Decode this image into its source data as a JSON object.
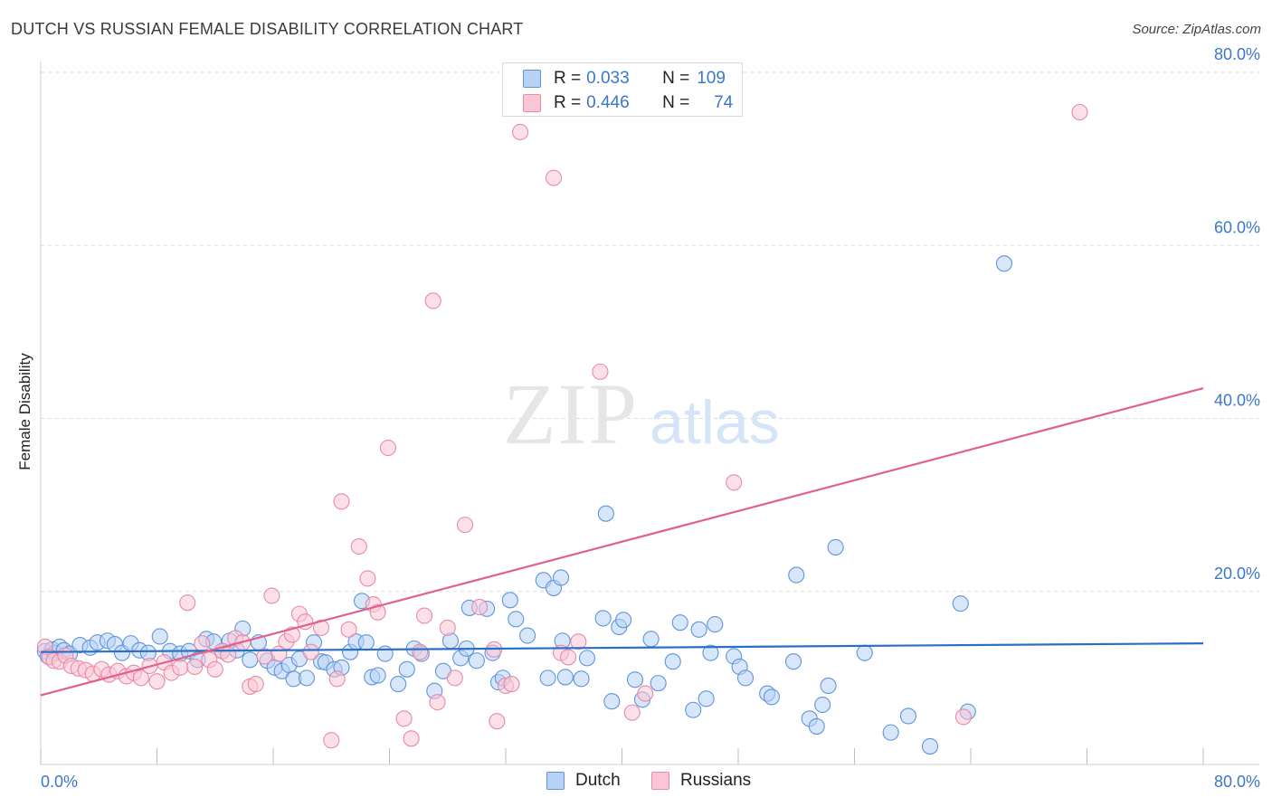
{
  "title": "DUTCH VS RUSSIAN FEMALE DISABILITY CORRELATION CHART",
  "source": "Source: ZipAtlas.com",
  "watermark": {
    "zip": "ZIP",
    "atlas": "atlas"
  },
  "colors": {
    "dutch_fill": "#b8d2f5",
    "dutch_stroke": "#5f95dc",
    "dutch_line": "#2a6fc6",
    "russian_fill": "#f9c6d6",
    "russian_stroke": "#e88aa8",
    "russian_line": "#e0628c",
    "tick_label": "#3a78c9",
    "grid": "#dcdcdc"
  },
  "legend": {
    "rows": [
      {
        "series": "dutch",
        "r_label": "R =",
        "r_value": "0.033",
        "n_label": "N =",
        "n_value": "109"
      },
      {
        "series": "russians",
        "r_label": "R =",
        "r_value": "0.446",
        "n_label": "N =",
        "n_value": "74"
      }
    ]
  },
  "bottom_legend": {
    "dutch": "Dutch",
    "russians": "Russians"
  },
  "chart_data": {
    "type": "scatter",
    "title": "DUTCH VS RUSSIAN FEMALE DISABILITY CORRELATION CHART",
    "xlabel": "",
    "ylabel": "Female Disability",
    "xlim": [
      0,
      80
    ],
    "ylim": [
      0,
      80
    ],
    "x_tick_labels": {
      "left": "0.0%",
      "right": "80.0%"
    },
    "y_ticks": [
      {
        "value": 20,
        "label": "20.0%"
      },
      {
        "value": 40,
        "label": "40.0%"
      },
      {
        "value": 60,
        "label": "60.0%"
      },
      {
        "value": 80,
        "label": "80.0%"
      }
    ],
    "grid": true,
    "series": [
      {
        "name": "Dutch",
        "R": 0.033,
        "N": 109,
        "trend": {
          "x": [
            0,
            80
          ],
          "y": [
            13.0,
            14.0
          ]
        },
        "points": [
          [
            0.3,
            13.1
          ],
          [
            0.5,
            12.5
          ],
          [
            0.8,
            13.3
          ],
          [
            1.0,
            12.9
          ],
          [
            1.3,
            13.6
          ],
          [
            1.6,
            13.2
          ],
          [
            2.0,
            12.8
          ],
          [
            2.7,
            13.8
          ],
          [
            3.4,
            13.5
          ],
          [
            3.9,
            14.1
          ],
          [
            4.6,
            14.3
          ],
          [
            5.1,
            13.9
          ],
          [
            5.6,
            12.9
          ],
          [
            6.2,
            14.0
          ],
          [
            6.8,
            13.2
          ],
          [
            7.4,
            12.9
          ],
          [
            8.2,
            14.8
          ],
          [
            8.9,
            13.1
          ],
          [
            9.6,
            12.8
          ],
          [
            10.2,
            13.1
          ],
          [
            10.8,
            12.1
          ],
          [
            11.4,
            14.5
          ],
          [
            11.9,
            14.2
          ],
          [
            12.5,
            13.1
          ],
          [
            13.0,
            14.3
          ],
          [
            13.5,
            13.2
          ],
          [
            13.9,
            15.7
          ],
          [
            14.4,
            12.1
          ],
          [
            15.0,
            14.1
          ],
          [
            15.6,
            12.0
          ],
          [
            16.1,
            11.2
          ],
          [
            16.6,
            10.8
          ],
          [
            17.1,
            11.5
          ],
          [
            17.4,
            9.9
          ],
          [
            17.8,
            12.2
          ],
          [
            18.3,
            10.0
          ],
          [
            18.8,
            14.1
          ],
          [
            19.3,
            11.9
          ],
          [
            19.6,
            11.8
          ],
          [
            20.2,
            11.0
          ],
          [
            20.7,
            11.2
          ],
          [
            21.3,
            13.0
          ],
          [
            21.7,
            14.2
          ],
          [
            22.1,
            18.9
          ],
          [
            22.4,
            14.1
          ],
          [
            22.8,
            10.1
          ],
          [
            23.2,
            10.3
          ],
          [
            23.7,
            12.8
          ],
          [
            24.6,
            9.3
          ],
          [
            25.2,
            11.0
          ],
          [
            25.7,
            13.4
          ],
          [
            26.2,
            12.8
          ],
          [
            27.1,
            8.5
          ],
          [
            27.7,
            10.8
          ],
          [
            28.2,
            14.3
          ],
          [
            28.9,
            12.3
          ],
          [
            29.3,
            13.4
          ],
          [
            30.0,
            12.0
          ],
          [
            30.7,
            18.0
          ],
          [
            31.1,
            12.9
          ],
          [
            31.5,
            9.5
          ],
          [
            31.8,
            10.0
          ],
          [
            32.3,
            19.0
          ],
          [
            32.7,
            16.8
          ],
          [
            33.5,
            14.9
          ],
          [
            34.6,
            21.3
          ],
          [
            34.9,
            10.0
          ],
          [
            35.3,
            20.4
          ],
          [
            35.9,
            14.3
          ],
          [
            36.1,
            10.1
          ],
          [
            37.2,
            9.9
          ],
          [
            37.6,
            12.3
          ],
          [
            38.7,
            16.9
          ],
          [
            39.3,
            7.3
          ],
          [
            39.8,
            15.9
          ],
          [
            40.1,
            16.7
          ],
          [
            40.9,
            9.8
          ],
          [
            41.4,
            7.5
          ],
          [
            42.0,
            14.5
          ],
          [
            42.5,
            9.4
          ],
          [
            43.5,
            11.9
          ],
          [
            44.0,
            16.4
          ],
          [
            44.9,
            6.3
          ],
          [
            45.3,
            15.6
          ],
          [
            45.8,
            7.6
          ],
          [
            46.1,
            12.9
          ],
          [
            46.4,
            16.2
          ],
          [
            47.7,
            12.5
          ],
          [
            48.1,
            11.3
          ],
          [
            48.5,
            10.0
          ],
          [
            50.0,
            8.2
          ],
          [
            50.3,
            7.8
          ],
          [
            51.8,
            11.9
          ],
          [
            52.0,
            21.9
          ],
          [
            52.9,
            5.3
          ],
          [
            53.4,
            4.4
          ],
          [
            53.8,
            6.9
          ],
          [
            54.2,
            9.1
          ],
          [
            54.7,
            25.1
          ],
          [
            56.7,
            12.9
          ],
          [
            58.5,
            3.7
          ],
          [
            59.7,
            5.6
          ],
          [
            61.2,
            2.1
          ],
          [
            63.3,
            18.6
          ],
          [
            63.8,
            6.1
          ],
          [
            66.3,
            57.9
          ],
          [
            38.9,
            29.0
          ],
          [
            35.8,
            21.6
          ],
          [
            29.5,
            18.1
          ]
        ]
      },
      {
        "name": "Russians",
        "R": 0.446,
        "N": 74,
        "trend": {
          "x": [
            0,
            80
          ],
          "y": [
            8.0,
            43.5
          ]
        },
        "points": [
          [
            0.3,
            13.6
          ],
          [
            0.6,
            12.4
          ],
          [
            0.9,
            12.0
          ],
          [
            1.3,
            11.9
          ],
          [
            1.7,
            12.6
          ],
          [
            2.1,
            11.4
          ],
          [
            2.6,
            11.1
          ],
          [
            3.1,
            10.9
          ],
          [
            3.6,
            10.5
          ],
          [
            4.2,
            11.0
          ],
          [
            4.7,
            10.4
          ],
          [
            5.3,
            10.8
          ],
          [
            5.9,
            10.2
          ],
          [
            6.4,
            10.6
          ],
          [
            6.9,
            10.0
          ],
          [
            7.5,
            11.4
          ],
          [
            8.0,
            9.6
          ],
          [
            8.5,
            11.8
          ],
          [
            9.0,
            10.6
          ],
          [
            9.6,
            11.2
          ],
          [
            10.1,
            18.7
          ],
          [
            10.6,
            11.3
          ],
          [
            11.1,
            14.0
          ],
          [
            11.6,
            12.1
          ],
          [
            12.0,
            11.0
          ],
          [
            12.5,
            13.1
          ],
          [
            12.9,
            12.7
          ],
          [
            13.4,
            14.6
          ],
          [
            13.9,
            14.1
          ],
          [
            14.4,
            9.0
          ],
          [
            14.8,
            9.3
          ],
          [
            15.4,
            12.5
          ],
          [
            15.9,
            19.5
          ],
          [
            16.4,
            12.8
          ],
          [
            16.9,
            14.2
          ],
          [
            17.3,
            15.0
          ],
          [
            17.8,
            17.4
          ],
          [
            18.2,
            16.5
          ],
          [
            18.6,
            13.0
          ],
          [
            19.3,
            15.8
          ],
          [
            20.0,
            2.8
          ],
          [
            20.4,
            9.9
          ],
          [
            20.7,
            30.4
          ],
          [
            21.2,
            15.6
          ],
          [
            21.9,
            25.2
          ],
          [
            22.5,
            21.5
          ],
          [
            22.9,
            18.5
          ],
          [
            23.2,
            17.6
          ],
          [
            23.9,
            36.6
          ],
          [
            25.0,
            5.3
          ],
          [
            25.5,
            3.0
          ],
          [
            26.1,
            13.0
          ],
          [
            27.0,
            53.6
          ],
          [
            27.3,
            7.2
          ],
          [
            28.0,
            15.8
          ],
          [
            28.5,
            10.0
          ],
          [
            29.2,
            27.7
          ],
          [
            30.2,
            18.2
          ],
          [
            31.4,
            5.0
          ],
          [
            32.0,
            9.1
          ],
          [
            32.4,
            9.3
          ],
          [
            33.0,
            73.1
          ],
          [
            35.3,
            67.8
          ],
          [
            35.8,
            12.9
          ],
          [
            36.3,
            12.4
          ],
          [
            37.0,
            14.2
          ],
          [
            38.5,
            45.4
          ],
          [
            40.7,
            6.0
          ],
          [
            41.6,
            8.2
          ],
          [
            47.7,
            32.6
          ],
          [
            63.5,
            5.5
          ],
          [
            71.5,
            75.4
          ],
          [
            26.4,
            17.2
          ],
          [
            31.2,
            13.3
          ]
        ]
      }
    ]
  }
}
